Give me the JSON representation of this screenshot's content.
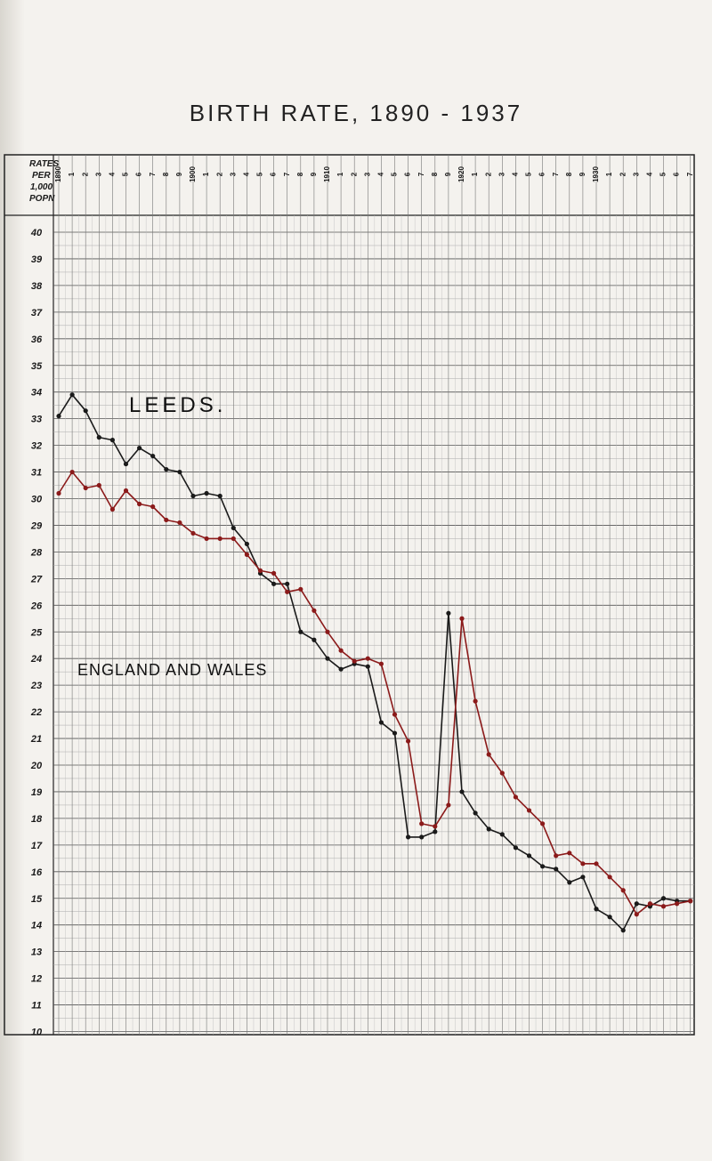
{
  "chart_data": {
    "type": "line",
    "title": "BIRTH RATE, 1890 - 1937",
    "ylabel": "RATES PER 1,000 POPN",
    "ylim": [
      10,
      40
    ],
    "xlim": [
      1890,
      1937
    ],
    "grid": true,
    "x": [
      1890,
      1891,
      1892,
      1893,
      1894,
      1895,
      1896,
      1897,
      1898,
      1899,
      1900,
      1901,
      1902,
      1903,
      1904,
      1905,
      1906,
      1907,
      1908,
      1909,
      1910,
      1911,
      1912,
      1913,
      1914,
      1915,
      1916,
      1917,
      1918,
      1919,
      1920,
      1921,
      1922,
      1923,
      1924,
      1925,
      1926,
      1927,
      1928,
      1929,
      1930,
      1931,
      1932,
      1933,
      1934,
      1935,
      1936,
      1937
    ],
    "x_tick_labels": [
      "1890",
      "1",
      "2",
      "3",
      "4",
      "5",
      "6",
      "7",
      "8",
      "9",
      "1900",
      "1",
      "2",
      "3",
      "4",
      "5",
      "6",
      "7",
      "8",
      "9",
      "1910",
      "1",
      "2",
      "3",
      "4",
      "5",
      "6",
      "7",
      "8",
      "9",
      "1920",
      "1",
      "2",
      "3",
      "4",
      "5",
      "6",
      "7",
      "8",
      "9",
      "1930",
      "1",
      "2",
      "3",
      "4",
      "5",
      "6",
      "7"
    ],
    "y_ticks": [
      40,
      39,
      38,
      37,
      36,
      35,
      34,
      33,
      32,
      31,
      30,
      29,
      28,
      27,
      26,
      25,
      24,
      23,
      22,
      21,
      20,
      19,
      18,
      17,
      16,
      15,
      14,
      13,
      12,
      11,
      10
    ],
    "series": [
      {
        "name": "LEEDS",
        "color": "#1a1a1a",
        "values": [
          33.1,
          33.9,
          33.3,
          32.3,
          32.2,
          31.3,
          31.9,
          31.6,
          31.1,
          31.0,
          30.1,
          30.2,
          30.1,
          28.9,
          28.3,
          27.2,
          26.8,
          26.8,
          25.0,
          24.7,
          24.0,
          23.6,
          23.8,
          23.7,
          21.6,
          21.2,
          17.3,
          17.3,
          17.5,
          25.7,
          19.0,
          18.2,
          17.6,
          17.4,
          16.9,
          16.6,
          16.2,
          16.1,
          15.6,
          15.8,
          14.6,
          14.3,
          13.8,
          14.8,
          14.7,
          15.0,
          14.9,
          14.9
        ]
      },
      {
        "name": "ENGLAND AND WALES",
        "color": "#8b1a1a",
        "values": [
          30.2,
          31.0,
          30.4,
          30.5,
          29.6,
          30.3,
          29.8,
          29.7,
          29.2,
          29.1,
          28.7,
          28.5,
          28.5,
          28.5,
          27.9,
          27.3,
          27.2,
          26.5,
          26.6,
          25.8,
          25.0,
          24.3,
          23.9,
          24.0,
          23.8,
          21.9,
          20.9,
          17.8,
          17.7,
          18.5,
          25.5,
          22.4,
          20.4,
          19.7,
          18.8,
          18.3,
          17.8,
          16.6,
          16.7,
          16.3,
          16.3,
          15.8,
          15.3,
          14.4,
          14.8,
          14.7,
          14.8,
          14.9
        ]
      }
    ],
    "annotations": [
      "LEEDS.",
      "ENGLAND AND WALES"
    ]
  }
}
